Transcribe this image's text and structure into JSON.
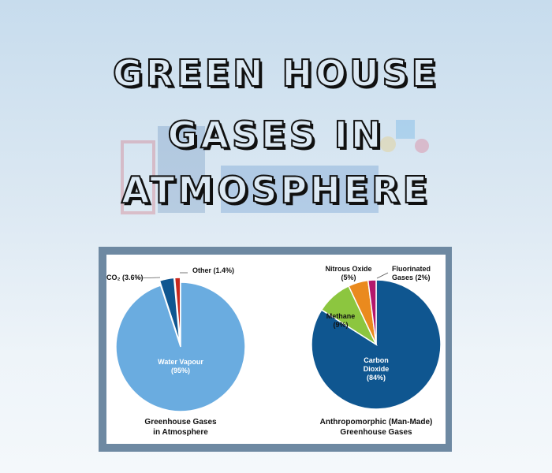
{
  "title_lines": [
    "GREEN HOUSE",
    "GASES IN",
    "ATMOSPHERE"
  ],
  "chart_data": [
    {
      "type": "pie",
      "title": "Greenhouse Gases in Atmosphere",
      "title_lines": [
        "Greenhouse Gases",
        "in Atmosphere"
      ],
      "slices": [
        {
          "label": "Water Vapour (95%)",
          "lines": [
            "Water Vapour",
            "(95%)"
          ],
          "value": 95,
          "color": "#6aace0"
        },
        {
          "label": "CO2 (3.6%)",
          "lines": [
            "CO₂ (3.6%)"
          ],
          "value": 3.6,
          "color": "#0f5690"
        },
        {
          "label": "Other (1.4%)",
          "lines": [
            "Other (1.4%)"
          ],
          "value": 1.4,
          "color": "#c8281e"
        }
      ]
    },
    {
      "type": "pie",
      "title": "Anthropomorphic (Man-Made) Greenhouse Gases",
      "title_lines": [
        "Anthropomorphic (Man-Made)",
        "Greenhouse Gases"
      ],
      "slices": [
        {
          "label": "Carbon Dioxide (84%)",
          "lines": [
            "Carbon",
            "Dioxide",
            "(84%)"
          ],
          "value": 84,
          "color": "#0f5690"
        },
        {
          "label": "Methane (9%)",
          "lines": [
            "Methane",
            "(9%)"
          ],
          "value": 9,
          "color": "#8cc63f"
        },
        {
          "label": "Nitrous Oxide (5%)",
          "lines": [
            "Nitrous Oxide",
            "(5%)"
          ],
          "value": 5,
          "color": "#ea8a1e"
        },
        {
          "label": "Fluorinated Gases (2%)",
          "lines": [
            "Fluorinated",
            "Gases (2%)"
          ],
          "value": 2,
          "color": "#b5176b"
        }
      ]
    }
  ]
}
